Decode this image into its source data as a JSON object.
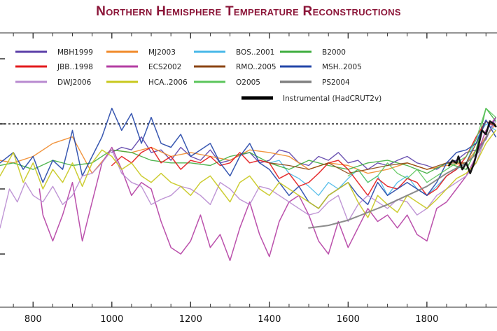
{
  "chart_data": {
    "type": "line",
    "title": "Northern Hemisphere Temperature Reconstructions",
    "xlabel": "",
    "ylabel": "",
    "xlim": [
      716,
      1978
    ],
    "ylim": [
      -1.4,
      0.7
    ],
    "x_ticks": [
      800,
      1000,
      1200,
      1400,
      1600,
      1800
    ],
    "y_ticks": [
      0.5,
      0,
      -0.5,
      -1.0
    ],
    "reference_line": {
      "y": 0,
      "style": "dotted"
    },
    "grid": false,
    "legend_position": "top-left",
    "series": [
      {
        "name": "MBH1999",
        "color": "#5b3fa8",
        "width": 1.4,
        "x": [
          1000,
          1025,
          1050,
          1075,
          1100,
          1125,
          1150,
          1175,
          1200,
          1225,
          1250,
          1275,
          1300,
          1325,
          1350,
          1375,
          1400,
          1425,
          1450,
          1475,
          1500,
          1525,
          1550,
          1575,
          1600,
          1625,
          1650,
          1675,
          1700,
          1725,
          1750,
          1775,
          1800,
          1825,
          1850,
          1875,
          1900,
          1925,
          1950,
          1975
        ],
        "y": [
          -0.22,
          -0.18,
          -0.2,
          -0.1,
          -0.22,
          -0.2,
          -0.28,
          -0.18,
          -0.25,
          -0.28,
          -0.2,
          -0.3,
          -0.28,
          -0.24,
          -0.22,
          -0.3,
          -0.28,
          -0.2,
          -0.22,
          -0.3,
          -0.32,
          -0.25,
          -0.28,
          -0.22,
          -0.3,
          -0.28,
          -0.35,
          -0.3,
          -0.32,
          -0.28,
          -0.25,
          -0.3,
          -0.32,
          -0.35,
          -0.3,
          -0.28,
          -0.22,
          -0.2,
          -0.12,
          0.05
        ]
      },
      {
        "name": "MJ2003",
        "color": "#f08a2a",
        "width": 1.4,
        "x": [
          716,
          750,
          800,
          850,
          900,
          950,
          1000,
          1050,
          1100,
          1150,
          1200,
          1250,
          1300,
          1350,
          1400,
          1450,
          1500,
          1550,
          1600,
          1650,
          1700,
          1750,
          1800,
          1850,
          1900,
          1950,
          1975
        ],
        "y": [
          -0.28,
          -0.3,
          -0.25,
          -0.15,
          -0.1,
          -0.38,
          -0.2,
          -0.22,
          -0.18,
          -0.25,
          -0.22,
          -0.25,
          -0.28,
          -0.2,
          -0.22,
          -0.25,
          -0.35,
          -0.3,
          -0.32,
          -0.38,
          -0.35,
          -0.3,
          -0.35,
          -0.32,
          -0.3,
          -0.1,
          0.0
        ]
      },
      {
        "name": "BOS..2001",
        "color": "#48b8e8",
        "width": 1.3,
        "x": [
          1400,
          1425,
          1450,
          1475,
          1500,
          1525,
          1550,
          1575,
          1600,
          1625,
          1650,
          1675,
          1700,
          1725,
          1750,
          1775,
          1800,
          1825,
          1850,
          1875,
          1900,
          1925,
          1950,
          1975
        ],
        "y": [
          -0.3,
          -0.28,
          -0.38,
          -0.42,
          -0.48,
          -0.55,
          -0.45,
          -0.5,
          -0.42,
          -0.35,
          -0.45,
          -0.4,
          -0.55,
          -0.45,
          -0.4,
          -0.5,
          -0.55,
          -0.48,
          -0.4,
          -0.35,
          -0.3,
          -0.12,
          0.0,
          -0.05
        ]
      },
      {
        "name": "B2000",
        "color": "#3fae3f",
        "width": 1.4,
        "x": [
          716,
          750,
          800,
          850,
          900,
          950,
          1000,
          1050,
          1100,
          1150,
          1200,
          1250,
          1300,
          1350,
          1400,
          1450,
          1500,
          1550,
          1600,
          1650,
          1700,
          1750,
          1800,
          1850,
          1900,
          1925,
          1950,
          1975
        ],
        "y": [
          -0.32,
          -0.3,
          -0.35,
          -0.28,
          -0.32,
          -0.3,
          -0.2,
          -0.22,
          -0.28,
          -0.3,
          -0.3,
          -0.32,
          -0.25,
          -0.22,
          -0.3,
          -0.35,
          -0.28,
          -0.32,
          -0.35,
          -0.3,
          -0.28,
          -0.32,
          -0.38,
          -0.3,
          -0.35,
          -0.2,
          0.12,
          0.02
        ]
      },
      {
        "name": "JBB..1998",
        "color": "#e31a1c",
        "width": 1.5,
        "x": [
          1000,
          1025,
          1050,
          1075,
          1100,
          1125,
          1150,
          1175,
          1200,
          1225,
          1250,
          1275,
          1300,
          1325,
          1350,
          1375,
          1400,
          1425,
          1450,
          1475,
          1500,
          1525,
          1550,
          1575,
          1600,
          1625,
          1650,
          1675,
          1700,
          1725,
          1750,
          1775,
          1800,
          1825,
          1850,
          1875,
          1900,
          1925,
          1950,
          1975
        ],
        "y": [
          -0.32,
          -0.25,
          -0.3,
          -0.22,
          -0.18,
          -0.3,
          -0.25,
          -0.35,
          -0.28,
          -0.3,
          -0.25,
          -0.32,
          -0.3,
          -0.22,
          -0.3,
          -0.28,
          -0.3,
          -0.42,
          -0.38,
          -0.48,
          -0.45,
          -0.38,
          -0.3,
          -0.28,
          -0.35,
          -0.45,
          -0.55,
          -0.42,
          -0.48,
          -0.5,
          -0.42,
          -0.45,
          -0.55,
          -0.5,
          -0.4,
          -0.35,
          -0.25,
          -0.1,
          0.02,
          -0.02
        ]
      },
      {
        "name": "ECS2002",
        "color": "#b43ea3",
        "width": 1.5,
        "x": [
          816,
          825,
          850,
          875,
          900,
          925,
          950,
          975,
          1000,
          1025,
          1050,
          1075,
          1100,
          1125,
          1150,
          1175,
          1200,
          1225,
          1250,
          1275,
          1300,
          1325,
          1350,
          1375,
          1400,
          1425,
          1450,
          1475,
          1500,
          1525,
          1550,
          1575,
          1600,
          1625,
          1650,
          1675,
          1700,
          1725,
          1750,
          1775,
          1800,
          1825,
          1850,
          1875,
          1900,
          1925,
          1950,
          1975
        ],
        "y": [
          -0.5,
          -0.7,
          -0.9,
          -0.7,
          -0.45,
          -0.9,
          -0.6,
          -0.3,
          -0.18,
          -0.35,
          -0.55,
          -0.45,
          -0.5,
          -0.75,
          -0.95,
          -1.0,
          -0.9,
          -0.7,
          -0.95,
          -0.85,
          -1.05,
          -0.8,
          -0.6,
          -0.85,
          -1.02,
          -0.75,
          -0.6,
          -0.55,
          -0.7,
          -0.9,
          -1.0,
          -0.75,
          -0.95,
          -0.8,
          -0.65,
          -0.75,
          -0.7,
          -0.8,
          -0.7,
          -0.85,
          -0.9,
          -0.65,
          -0.6,
          -0.5,
          -0.4,
          -0.25,
          -0.05,
          0.05
        ]
      },
      {
        "name": "RMO..2005",
        "color": "#8b4513",
        "width": 1.3,
        "x": [
          1400,
          1450,
          1500,
          1550,
          1600,
          1650,
          1700,
          1750,
          1800,
          1850,
          1900,
          1925,
          1950,
          1975
        ],
        "y": [
          -0.3,
          -0.32,
          -0.35,
          -0.3,
          -0.38,
          -0.35,
          -0.32,
          -0.3,
          -0.35,
          -0.3,
          -0.3,
          -0.15,
          0.02,
          -0.02
        ]
      },
      {
        "name": "MSH..2005",
        "color": "#2346a8",
        "width": 1.5,
        "x": [
          716,
          750,
          775,
          800,
          825,
          850,
          875,
          900,
          925,
          950,
          975,
          1000,
          1025,
          1050,
          1075,
          1100,
          1125,
          1150,
          1175,
          1200,
          1225,
          1250,
          1275,
          1300,
          1325,
          1350,
          1375,
          1400,
          1425,
          1450,
          1475,
          1500,
          1525,
          1550,
          1575,
          1600,
          1625,
          1650,
          1675,
          1700,
          1725,
          1750,
          1775,
          1800,
          1825,
          1850,
          1875,
          1900,
          1925,
          1950,
          1975
        ],
        "y": [
          -0.3,
          -0.22,
          -0.35,
          -0.25,
          -0.45,
          -0.28,
          -0.35,
          -0.05,
          -0.4,
          -0.25,
          -0.1,
          0.12,
          -0.05,
          0.08,
          -0.15,
          0.05,
          -0.15,
          -0.18,
          -0.08,
          -0.25,
          -0.2,
          -0.15,
          -0.3,
          -0.4,
          -0.25,
          -0.15,
          -0.3,
          -0.35,
          -0.45,
          -0.55,
          -0.48,
          -0.6,
          -0.65,
          -0.55,
          -0.5,
          -0.45,
          -0.55,
          -0.62,
          -0.45,
          -0.55,
          -0.5,
          -0.45,
          -0.5,
          -0.55,
          -0.45,
          -0.3,
          -0.22,
          -0.2,
          -0.15,
          0.03,
          -0.1
        ]
      },
      {
        "name": "DWJ2006",
        "color": "#b88ad0",
        "width": 1.4,
        "x": [
          716,
          740,
          760,
          780,
          800,
          825,
          850,
          875,
          900,
          925,
          950,
          975,
          1000,
          1025,
          1050,
          1075,
          1100,
          1125,
          1150,
          1175,
          1200,
          1225,
          1250,
          1275,
          1300,
          1325,
          1350,
          1375,
          1400,
          1425,
          1450,
          1475,
          1500,
          1525,
          1550,
          1575,
          1600,
          1625,
          1650,
          1675,
          1700,
          1725,
          1750,
          1775,
          1800,
          1825,
          1850,
          1875,
          1900,
          1925,
          1950,
          1975
        ],
        "y": [
          -0.8,
          -0.5,
          -0.6,
          -0.45,
          -0.55,
          -0.6,
          -0.48,
          -0.62,
          -0.55,
          -0.4,
          -0.38,
          -0.3,
          -0.2,
          -0.38,
          -0.45,
          -0.48,
          -0.62,
          -0.58,
          -0.55,
          -0.48,
          -0.5,
          -0.55,
          -0.62,
          -0.45,
          -0.5,
          -0.58,
          -0.62,
          -0.48,
          -0.5,
          -0.55,
          -0.6,
          -0.65,
          -0.7,
          -0.68,
          -0.6,
          -0.55,
          -0.75,
          -0.62,
          -0.55,
          -0.6,
          -0.65,
          -0.58,
          -0.6,
          -0.7,
          -0.65,
          -0.55,
          -0.5,
          -0.45,
          -0.4,
          -0.3,
          -0.1,
          0.02
        ]
      },
      {
        "name": "HCA..2006",
        "color": "#c8c81e",
        "width": 1.5,
        "x": [
          716,
          750,
          775,
          800,
          825,
          850,
          875,
          900,
          925,
          950,
          975,
          1000,
          1025,
          1050,
          1075,
          1100,
          1125,
          1150,
          1175,
          1200,
          1225,
          1250,
          1275,
          1300,
          1325,
          1350,
          1375,
          1400,
          1425,
          1450,
          1475,
          1500,
          1525,
          1550,
          1575,
          1600,
          1625,
          1650,
          1675,
          1700,
          1725,
          1750,
          1775,
          1800,
          1825,
          1850,
          1875,
          1900,
          1925,
          1950,
          1975
        ],
        "y": [
          -0.4,
          -0.22,
          -0.45,
          -0.3,
          -0.5,
          -0.35,
          -0.45,
          -0.3,
          -0.48,
          -0.3,
          -0.2,
          -0.25,
          -0.35,
          -0.3,
          -0.4,
          -0.45,
          -0.38,
          -0.45,
          -0.48,
          -0.55,
          -0.45,
          -0.4,
          -0.5,
          -0.6,
          -0.45,
          -0.4,
          -0.5,
          -0.55,
          -0.45,
          -0.5,
          -0.55,
          -0.6,
          -0.65,
          -0.55,
          -0.5,
          -0.45,
          -0.6,
          -0.72,
          -0.55,
          -0.62,
          -0.68,
          -0.55,
          -0.6,
          -0.65,
          -0.58,
          -0.5,
          -0.42,
          -0.38,
          -0.3,
          -0.15,
          -0.05
        ]
      },
      {
        "name": "O2005",
        "color": "#5bc55b",
        "width": 1.3,
        "x": [
          1600,
          1625,
          1650,
          1675,
          1700,
          1725,
          1750,
          1775,
          1800,
          1825,
          1850,
          1875,
          1900,
          1925,
          1950,
          1975
        ],
        "y": [
          -0.4,
          -0.35,
          -0.45,
          -0.4,
          -0.3,
          -0.38,
          -0.42,
          -0.35,
          -0.45,
          -0.4,
          -0.35,
          -0.3,
          -0.25,
          -0.12,
          0.12,
          0.05
        ]
      },
      {
        "name": "PS2004",
        "color": "#808080",
        "width": 2.0,
        "x": [
          1500,
          1550,
          1600,
          1650,
          1700,
          1750,
          1800,
          1850,
          1900,
          1930,
          1960
        ],
        "y": [
          -0.8,
          -0.78,
          -0.74,
          -0.68,
          -0.62,
          -0.55,
          -0.48,
          -0.38,
          -0.3,
          -0.22,
          -0.05
        ]
      },
      {
        "name": "Instrumental (HadCRUT2v)",
        "color": "#000000",
        "width": 2.6,
        "x": [
          1856,
          1865,
          1875,
          1880,
          1890,
          1900,
          1910,
          1920,
          1930,
          1940,
          1950,
          1960,
          1970,
          1975
        ],
        "y": [
          -0.32,
          -0.28,
          -0.3,
          -0.25,
          -0.35,
          -0.3,
          -0.38,
          -0.3,
          -0.18,
          -0.05,
          -0.08,
          0.02,
          0.0,
          -0.02
        ]
      }
    ]
  }
}
